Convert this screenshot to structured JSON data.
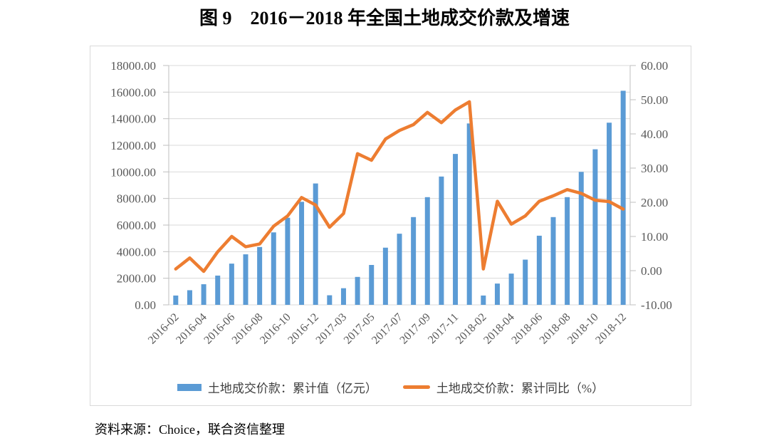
{
  "title": "图 9　2016－2018 年全国土地成交价款及增速",
  "source_note": "资料来源：Choice，联合资信整理",
  "colors": {
    "bar": "#5B9BD5",
    "line": "#ED7D31",
    "grid": "#D9D9D9",
    "frame_border": "#D9D9D9",
    "axis_line": "#BFBFBF",
    "axis_text": "#595959",
    "legend_text": "#404040",
    "title_text": "#000000"
  },
  "legend": [
    {
      "label": "土地成交价款：累计值（亿元）",
      "swatch": "bar"
    },
    {
      "label": "土地成交价款：累计同比（%）",
      "swatch": "line"
    }
  ],
  "chart_data": {
    "type": "bar+line",
    "title": "图 9　2016－2018 年全国土地成交价款及增速",
    "categories": [
      "2016-02",
      "2016-03",
      "2016-04",
      "2016-05",
      "2016-06",
      "2016-07",
      "2016-08",
      "2016-09",
      "2016-10",
      "2016-11",
      "2016-12",
      "2017-02",
      "2017-03",
      "2017-04",
      "2017-05",
      "2017-06",
      "2017-07",
      "2017-08",
      "2017-09",
      "2017-10",
      "2017-11",
      "2017-12",
      "2018-02",
      "2018-03",
      "2018-04",
      "2018-05",
      "2018-06",
      "2018-07",
      "2018-08",
      "2018-09",
      "2018-10",
      "2018-11",
      "2018-12"
    ],
    "x_tick_interval": 2,
    "series": [
      {
        "name": "土地成交价款：累计值（亿元）",
        "type": "bar",
        "axis": "left",
        "values": [
          700,
          1100,
          1550,
          2200,
          3100,
          3800,
          4350,
          5450,
          6550,
          7750,
          9129,
          720,
          1250,
          2100,
          3000,
          4300,
          5350,
          6600,
          8100,
          9650,
          11350,
          13643,
          700,
          1600,
          2350,
          3400,
          5200,
          6600,
          8100,
          10000,
          11700,
          13700,
          16102
        ]
      },
      {
        "name": "土地成交价款：累计同比（%）",
        "type": "line",
        "axis": "right",
        "values": [
          0.5,
          3.7,
          -0.2,
          5.5,
          10.0,
          7.0,
          7.8,
          13.0,
          16.0,
          21.4,
          19.2,
          12.7,
          16.7,
          34.2,
          32.3,
          38.5,
          41.0,
          42.7,
          46.3,
          43.3,
          47.0,
          49.4,
          0.5,
          20.3,
          13.6,
          16.0,
          20.3,
          21.9,
          23.7,
          22.6,
          20.6,
          20.2,
          18.0
        ]
      }
    ],
    "left_axis": {
      "min": 0,
      "max": 18000,
      "step": 2000,
      "decimals": 2
    },
    "right_axis": {
      "min": -10,
      "max": 60,
      "step": 10,
      "decimals": 2
    },
    "grid": "horizontal",
    "legend_position": "bottom"
  }
}
